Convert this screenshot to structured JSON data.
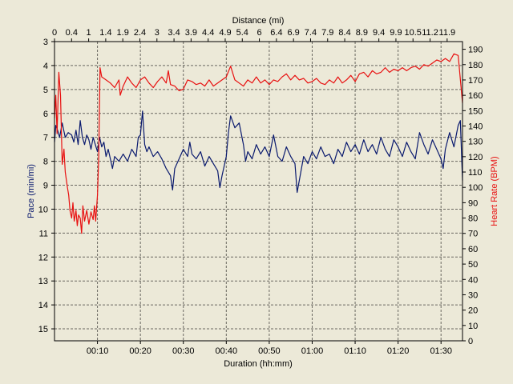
{
  "chart_data": {
    "type": "line",
    "title": "",
    "x_top_label": "Distance (mi)",
    "x_bottom_label": "Duration (hh:mm)",
    "y_left_label": "Pace (min/mi)",
    "y_right_label": "Heart Rate (BPM)",
    "x_range_minutes": [
      0,
      95
    ],
    "y_left_range": [
      3,
      15.5
    ],
    "y_left_inverted": true,
    "y_right_range": [
      0,
      195
    ],
    "grid": true,
    "x_bottom_ticks": [
      {
        "label": "00:10",
        "min": 10
      },
      {
        "label": "00:20",
        "min": 20
      },
      {
        "label": "00:30",
        "min": 30
      },
      {
        "label": "00:40",
        "min": 40
      },
      {
        "label": "00:50",
        "min": 50
      },
      {
        "label": "01:00",
        "min": 60
      },
      {
        "label": "01:10",
        "min": 70
      },
      {
        "label": "01:20",
        "min": 80
      },
      {
        "label": "01:30",
        "min": 90
      }
    ],
    "x_top_ticks": [
      "0",
      "0.4",
      "1",
      "1.4",
      "1.9",
      "2.4",
      "3",
      "3.4",
      "3.9",
      "4.4",
      "4.9",
      "5.4",
      "6",
      "6.4",
      "6.9",
      "7.4",
      "7.9",
      "8.4",
      "8.9",
      "9.4",
      "9.9",
      "10.5",
      "11.2",
      "11.9"
    ],
    "y_left_ticks": [
      3,
      4,
      5,
      6,
      7,
      8,
      9,
      10,
      11,
      12,
      13,
      14,
      15
    ],
    "y_right_ticks": [
      0,
      10,
      20,
      30,
      40,
      50,
      60,
      70,
      80,
      90,
      100,
      110,
      120,
      130,
      140,
      150,
      160,
      170,
      180,
      190
    ],
    "series": [
      {
        "name": "Pace",
        "color": "#0a1a6e",
        "axis": "left",
        "points": [
          [
            0,
            7.2
          ],
          [
            0.3,
            6.5
          ],
          [
            0.7,
            6.7
          ],
          [
            1.2,
            7.0
          ],
          [
            1.8,
            6.4
          ],
          [
            2.5,
            7.0
          ],
          [
            3.2,
            6.8
          ],
          [
            4,
            6.9
          ],
          [
            4.5,
            7.2
          ],
          [
            5,
            6.7
          ],
          [
            5.5,
            7.3
          ],
          [
            6,
            6.3
          ],
          [
            6.5,
            7.0
          ],
          [
            7,
            7.3
          ],
          [
            7.5,
            6.9
          ],
          [
            8,
            7.1
          ],
          [
            8.5,
            7.5
          ],
          [
            9,
            7.0
          ],
          [
            9.5,
            7.3
          ],
          [
            10,
            7.6
          ],
          [
            10.5,
            7.0
          ],
          [
            11,
            7.4
          ],
          [
            11.5,
            7.2
          ],
          [
            12,
            7.8
          ],
          [
            12.5,
            7.5
          ],
          [
            13,
            7.9
          ],
          [
            13.5,
            8.3
          ],
          [
            14,
            7.8
          ],
          [
            15,
            8.0
          ],
          [
            16,
            7.7
          ],
          [
            17,
            8.0
          ],
          [
            18,
            7.5
          ],
          [
            19,
            7.8
          ],
          [
            19.5,
            7.0
          ],
          [
            20,
            6.9
          ],
          [
            20.5,
            5.9
          ],
          [
            21,
            7.3
          ],
          [
            21.5,
            7.6
          ],
          [
            22,
            7.4
          ],
          [
            23,
            7.8
          ],
          [
            24,
            7.6
          ],
          [
            25,
            7.9
          ],
          [
            26,
            8.3
          ],
          [
            27,
            8.6
          ],
          [
            27.5,
            9.2
          ],
          [
            28,
            8.3
          ],
          [
            29,
            7.9
          ],
          [
            30,
            7.5
          ],
          [
            31,
            7.8
          ],
          [
            31.5,
            7.2
          ],
          [
            32,
            7.7
          ],
          [
            33,
            7.9
          ],
          [
            34,
            7.6
          ],
          [
            35,
            8.2
          ],
          [
            36,
            7.8
          ],
          [
            37,
            8.1
          ],
          [
            38,
            8.4
          ],
          [
            38.5,
            9.1
          ],
          [
            39,
            8.6
          ],
          [
            40,
            7.8
          ],
          [
            40.5,
            6.8
          ],
          [
            41,
            6.1
          ],
          [
            42,
            6.6
          ],
          [
            43,
            6.4
          ],
          [
            44,
            7.3
          ],
          [
            44.5,
            8.0
          ],
          [
            45,
            7.6
          ],
          [
            46,
            7.9
          ],
          [
            47,
            7.3
          ],
          [
            48,
            7.7
          ],
          [
            49,
            7.4
          ],
          [
            50,
            7.8
          ],
          [
            51,
            6.9
          ],
          [
            52,
            7.8
          ],
          [
            53,
            8.0
          ],
          [
            54,
            7.4
          ],
          [
            55,
            7.8
          ],
          [
            56,
            8.1
          ],
          [
            56.5,
            9.3
          ],
          [
            57,
            8.8
          ],
          [
            58,
            7.8
          ],
          [
            59,
            8.1
          ],
          [
            60,
            7.6
          ],
          [
            61,
            7.9
          ],
          [
            62,
            7.4
          ],
          [
            63,
            7.8
          ],
          [
            64,
            7.7
          ],
          [
            65,
            8.1
          ],
          [
            66,
            7.5
          ],
          [
            67,
            7.8
          ],
          [
            68,
            7.2
          ],
          [
            69,
            7.6
          ],
          [
            70,
            7.3
          ],
          [
            71,
            7.7
          ],
          [
            72,
            7.1
          ],
          [
            73,
            7.6
          ],
          [
            74,
            7.3
          ],
          [
            75,
            7.7
          ],
          [
            76,
            7.0
          ],
          [
            77,
            7.5
          ],
          [
            78,
            7.8
          ],
          [
            79,
            7.1
          ],
          [
            80,
            7.4
          ],
          [
            81,
            7.8
          ],
          [
            82,
            7.2
          ],
          [
            83,
            7.6
          ],
          [
            84,
            7.9
          ],
          [
            85,
            6.8
          ],
          [
            86,
            7.3
          ],
          [
            87,
            7.7
          ],
          [
            88,
            7.1
          ],
          [
            89,
            7.5
          ],
          [
            90,
            7.9
          ],
          [
            90.5,
            8.3
          ],
          [
            91,
            7.5
          ],
          [
            92,
            6.8
          ],
          [
            93,
            7.4
          ],
          [
            94,
            6.5
          ],
          [
            94.5,
            6.3
          ],
          [
            95,
            8.8
          ]
        ]
      },
      {
        "name": "Heart Rate",
        "color": "#e81010",
        "axis": "right",
        "points": [
          [
            0,
            145
          ],
          [
            0.3,
            160
          ],
          [
            0.6,
            135
          ],
          [
            1,
            175
          ],
          [
            1.4,
            160
          ],
          [
            1.8,
            115
          ],
          [
            2.2,
            125
          ],
          [
            2.5,
            110
          ],
          [
            3,
            100
          ],
          [
            3.3,
            95
          ],
          [
            3.6,
            85
          ],
          [
            4,
            80
          ],
          [
            4.3,
            90
          ],
          [
            4.6,
            78
          ],
          [
            5,
            85
          ],
          [
            5.3,
            75
          ],
          [
            5.6,
            82
          ],
          [
            6,
            80
          ],
          [
            6.3,
            70
          ],
          [
            6.6,
            88
          ],
          [
            7,
            78
          ],
          [
            7.5,
            85
          ],
          [
            8,
            76
          ],
          [
            8.5,
            84
          ],
          [
            9,
            79
          ],
          [
            9.3,
            88
          ],
          [
            9.6,
            78
          ],
          [
            10,
            95
          ],
          [
            10.3,
            120
          ],
          [
            10.6,
            178
          ],
          [
            11,
            172
          ],
          [
            12,
            170
          ],
          [
            13,
            168
          ],
          [
            14,
            165
          ],
          [
            15,
            170
          ],
          [
            15.3,
            160
          ],
          [
            16,
            166
          ],
          [
            17,
            172
          ],
          [
            18,
            168
          ],
          [
            19,
            165
          ],
          [
            20,
            170
          ],
          [
            21,
            172
          ],
          [
            22,
            168
          ],
          [
            23,
            165
          ],
          [
            24,
            169
          ],
          [
            25,
            172
          ],
          [
            26,
            168
          ],
          [
            26.5,
            176
          ],
          [
            27,
            167
          ],
          [
            28,
            166
          ],
          [
            29,
            163
          ],
          [
            30,
            164
          ],
          [
            31,
            170
          ],
          [
            32,
            169
          ],
          [
            33,
            167
          ],
          [
            34,
            168
          ],
          [
            35,
            166
          ],
          [
            36,
            170
          ],
          [
            37,
            166
          ],
          [
            38,
            168
          ],
          [
            39,
            170
          ],
          [
            40,
            172
          ],
          [
            41,
            179
          ],
          [
            42,
            170
          ],
          [
            43,
            168
          ],
          [
            44,
            166
          ],
          [
            45,
            170
          ],
          [
            46,
            168
          ],
          [
            47,
            172
          ],
          [
            48,
            168
          ],
          [
            49,
            170
          ],
          [
            50,
            167
          ],
          [
            51,
            170
          ],
          [
            52,
            169
          ],
          [
            53,
            172
          ],
          [
            54,
            174
          ],
          [
            55,
            170
          ],
          [
            56,
            173
          ],
          [
            57,
            170
          ],
          [
            58,
            171
          ],
          [
            59,
            168
          ],
          [
            60,
            169
          ],
          [
            61,
            171
          ],
          [
            62,
            168
          ],
          [
            63,
            167
          ],
          [
            64,
            170
          ],
          [
            65,
            168
          ],
          [
            66,
            172
          ],
          [
            67,
            168
          ],
          [
            68,
            170
          ],
          [
            69,
            173
          ],
          [
            70,
            169
          ],
          [
            71,
            174
          ],
          [
            72,
            175
          ],
          [
            73,
            172
          ],
          [
            74,
            176
          ],
          [
            75,
            174
          ],
          [
            76,
            175
          ],
          [
            77,
            178
          ],
          [
            78,
            175
          ],
          [
            79,
            177
          ],
          [
            80,
            176
          ],
          [
            81,
            178
          ],
          [
            82,
            176
          ],
          [
            83,
            178
          ],
          [
            84,
            179
          ],
          [
            85,
            177
          ],
          [
            86,
            180
          ],
          [
            87,
            179
          ],
          [
            88,
            181
          ],
          [
            89,
            183
          ],
          [
            90,
            182
          ],
          [
            91,
            184
          ],
          [
            92,
            182
          ],
          [
            93,
            187
          ],
          [
            94,
            186
          ],
          [
            95,
            155
          ]
        ]
      }
    ]
  }
}
